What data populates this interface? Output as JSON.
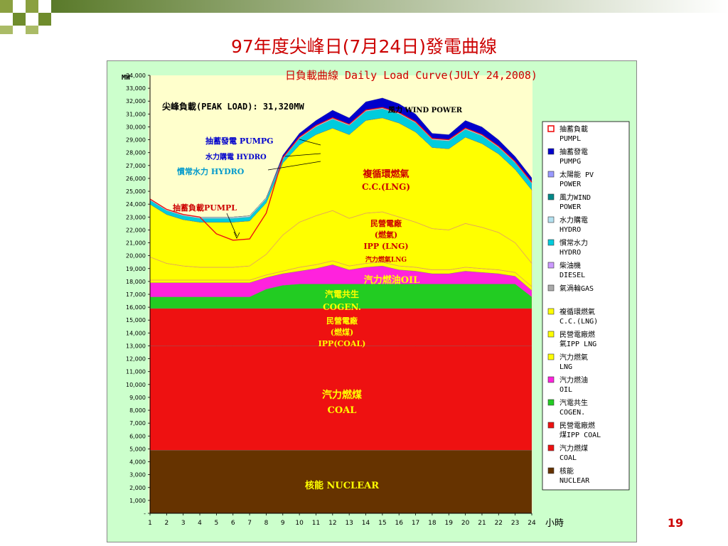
{
  "slide": {
    "title": "97年度尖峰日(7月24日)發電曲線",
    "page_number": "19",
    "colors": {
      "title": "#cc0000",
      "frame_bg": "#ccffcc",
      "plot_bg": "#ffffcc"
    }
  },
  "chart_data": {
    "type": "area",
    "title": "日負載曲線 Daily Load Curve(JULY 24,2008)",
    "ylabel": "MW",
    "xlabel": "小時",
    "peak_note": "尖峰負載(PEAK LOAD): 31,320MW",
    "ylim": [
      0,
      34000
    ],
    "x": [
      1,
      2,
      3,
      4,
      5,
      6,
      7,
      8,
      9,
      10,
      11,
      12,
      13,
      14,
      15,
      16,
      17,
      18,
      19,
      20,
      21,
      22,
      23,
      24
    ],
    "y_ticks": [
      "-",
      "1,000",
      "2,000",
      "3,000",
      "4,000",
      "5,000",
      "6,000",
      "7,000",
      "8,000",
      "9,000",
      "10,000",
      "11,000",
      "12,000",
      "13,000",
      "14,000",
      "15,000",
      "16,000",
      "17,000",
      "18,000",
      "19,000",
      "20,000",
      "21,000",
      "22,000",
      "23,000",
      "24,000",
      "25,000",
      "26,000",
      "27,000",
      "28,000",
      "29,000",
      "30,000",
      "31,000",
      "32,000",
      "33,000",
      "34,000"
    ],
    "x_ticks": [
      "1",
      "2",
      "3",
      "4",
      "5",
      "6",
      "7",
      "8",
      "9",
      "10",
      "11",
      "12",
      "13",
      "14",
      "15",
      "16",
      "17",
      "18",
      "19",
      "20",
      "21",
      "22",
      "23",
      "24"
    ],
    "stack_order": [
      "nuclear",
      "coal",
      "ipp_coal",
      "cogen",
      "oil",
      "lng",
      "ipp_lng",
      "cc_lng",
      "gas_turbine",
      "diesel",
      "hydro",
      "hydro_purchase",
      "wind",
      "solar",
      "pumpg"
    ],
    "series": {
      "nuclear": {
        "color": "#663300",
        "values": [
          4900,
          4900,
          4900,
          4900,
          4900,
          4900,
          4900,
          4900,
          4900,
          4900,
          4900,
          4900,
          4900,
          4900,
          4900,
          4900,
          4900,
          4900,
          4900,
          4900,
          4900,
          4900,
          4900,
          4900
        ]
      },
      "coal": {
        "color": "#ee1111",
        "values": [
          8100,
          8100,
          8100,
          8100,
          8100,
          8100,
          8100,
          8100,
          8100,
          8100,
          8100,
          8100,
          8100,
          8100,
          8100,
          8100,
          8100,
          8100,
          8100,
          8100,
          8100,
          8100,
          8100,
          8100
        ]
      },
      "ipp_coal": {
        "color": "#ee1111",
        "values": [
          2900,
          2900,
          2900,
          2900,
          2900,
          2900,
          2900,
          2900,
          2900,
          2900,
          2900,
          2900,
          2900,
          2900,
          2900,
          2900,
          2900,
          2900,
          2900,
          2900,
          2900,
          2900,
          2900,
          2900
        ]
      },
      "cogen": {
        "color": "#22cc22",
        "values": [
          900,
          900,
          900,
          900,
          900,
          900,
          900,
          1500,
          1800,
          1900,
          1900,
          1900,
          1900,
          1900,
          1900,
          1900,
          1900,
          1900,
          1900,
          1900,
          1900,
          1900,
          1900,
          900
        ]
      },
      "oil": {
        "color": "#ff22dd",
        "values": [
          1100,
          1100,
          1100,
          1100,
          1100,
          1100,
          1100,
          900,
          900,
          1000,
          1200,
          1500,
          1100,
          1300,
          1400,
          1100,
          1000,
          800,
          800,
          1000,
          900,
          800,
          600,
          500
        ]
      },
      "lng": {
        "color": "#ffff00",
        "values": [
          200,
          200,
          200,
          200,
          200,
          200,
          200,
          200,
          200,
          300,
          300,
          300,
          300,
          300,
          300,
          300,
          300,
          300,
          300,
          300,
          300,
          300,
          300,
          300
        ]
      },
      "ipp_lng": {
        "color": "#ffff00",
        "values": [
          1800,
          1300,
          1100,
          1000,
          1000,
          1000,
          1100,
          1600,
          2800,
          3500,
          3800,
          3900,
          3700,
          3900,
          3900,
          3800,
          3500,
          3200,
          3100,
          3400,
          3200,
          2900,
          2300,
          1800
        ]
      },
      "cc_lng": {
        "color": "#ffff00",
        "values": [
          4100,
          3800,
          3600,
          3500,
          3500,
          3500,
          3500,
          4000,
          5600,
          6000,
          6300,
          6400,
          6500,
          7200,
          7300,
          7300,
          7000,
          6300,
          6300,
          6700,
          6500,
          6100,
          5700,
          5700
        ]
      },
      "gas_turbine": {
        "color": "#aaaaaa",
        "values": [
          0,
          0,
          0,
          0,
          0,
          0,
          0,
          0,
          0,
          0,
          0,
          0,
          0,
          0,
          0,
          0,
          0,
          0,
          0,
          0,
          0,
          0,
          0,
          0
        ]
      },
      "diesel": {
        "color": "#cc99ff",
        "values": [
          0,
          0,
          0,
          0,
          0,
          0,
          0,
          0,
          0,
          0,
          0,
          0,
          0,
          0,
          0,
          0,
          0,
          0,
          0,
          0,
          0,
          0,
          0,
          0
        ]
      },
      "hydro": {
        "color": "#00ccdd",
        "values": [
          300,
          300,
          300,
          300,
          300,
          300,
          300,
          300,
          300,
          500,
          600,
          700,
          700,
          700,
          700,
          700,
          700,
          600,
          600,
          600,
          600,
          500,
          500,
          500
        ]
      },
      "hydro_purchase": {
        "color": "#b4e1f0",
        "values": [
          100,
          100,
          100,
          100,
          100,
          100,
          100,
          100,
          100,
          100,
          100,
          100,
          100,
          100,
          100,
          100,
          100,
          100,
          100,
          100,
          100,
          100,
          100,
          100
        ]
      },
      "wind": {
        "color": "#008888",
        "values": [
          0,
          0,
          0,
          0,
          0,
          0,
          0,
          0,
          0,
          0,
          0,
          0,
          0,
          0,
          0,
          0,
          0,
          0,
          0,
          0,
          0,
          0,
          0,
          0
        ]
      },
      "solar": {
        "color": "#9999ff",
        "values": [
          0,
          0,
          0,
          0,
          0,
          0,
          0,
          0,
          0,
          0,
          0,
          0,
          0,
          0,
          0,
          0,
          0,
          0,
          0,
          0,
          0,
          0,
          0,
          0
        ]
      },
      "pumpg": {
        "color": "#0000cc",
        "values": [
          0,
          0,
          0,
          0,
          0,
          0,
          0,
          0,
          200,
          300,
          400,
          600,
          500,
          650,
          750,
          700,
          600,
          400,
          400,
          600,
          600,
          500,
          400,
          350
        ]
      },
      "pumpl": {
        "color": "#ee1111",
        "values": [
          0,
          0,
          0,
          0,
          1300,
          1800,
          1800,
          1200,
          0,
          0,
          0,
          0,
          0,
          0,
          0,
          0,
          0,
          0,
          0,
          0,
          0,
          0,
          0,
          0
        ]
      }
    },
    "in_chart_labels": [
      {
        "key": "pumpg",
        "text": "抽蓄發電 PUMPG",
        "color": "#0000cc"
      },
      {
        "key": "hydro_purchase",
        "text": "水力購電 HYDRO",
        "color": "#0000cc"
      },
      {
        "key": "hydro",
        "text": "慣常水力 HYDRO",
        "color": "#0099cc"
      },
      {
        "key": "wind",
        "text": "風力 WIND POWER",
        "color": "#000000"
      },
      {
        "key": "pumpl",
        "text": "抽蓄負載PUMPL",
        "color": "#cc0000"
      },
      {
        "key": "cc_lng_1",
        "text": "複循環燃氣",
        "color": "#cc0000"
      },
      {
        "key": "cc_lng_2",
        "text": "C.C.(LNG)",
        "color": "#cc0000"
      },
      {
        "key": "ipp_lng_1",
        "text": "民營電廠",
        "color": "#cc0000"
      },
      {
        "key": "ipp_lng_2",
        "text": "(燃氣)",
        "color": "#cc0000"
      },
      {
        "key": "ipp_lng_3",
        "text": "IPP (LNG)",
        "color": "#cc0000"
      },
      {
        "key": "lng",
        "text": "汽力燃氣LNG",
        "color": "#cc0000"
      },
      {
        "key": "oil",
        "text": "汽力燃油OIL",
        "color": "#ffff00"
      },
      {
        "key": "cogen_1",
        "text": "汽電共生",
        "color": "#ffff00"
      },
      {
        "key": "cogen_2",
        "text": "COGEN.",
        "color": "#ffff00"
      },
      {
        "key": "ipp_coal_1",
        "text": "民營電廠",
        "color": "#ffff00"
      },
      {
        "key": "ipp_coal_2",
        "text": "(燃煤)",
        "color": "#ffff00"
      },
      {
        "key": "ipp_coal_3",
        "text": "IPP(COAL)",
        "color": "#ffff00"
      },
      {
        "key": "coal_1",
        "text": "汽力燃煤",
        "color": "#ffff00"
      },
      {
        "key": "coal_2",
        "text": "COAL",
        "color": "#ffff00"
      },
      {
        "key": "nuclear",
        "text": "核能 NUCLEAR",
        "color": "#ffff00"
      }
    ],
    "legend": {
      "placement": "right",
      "entries": [
        {
          "key": "pumpl",
          "lines": [
            "抽蓄負載",
            "PUMPL"
          ],
          "swatch": "outline",
          "color": "#ee1111"
        },
        {
          "key": "pumpg",
          "lines": [
            "抽蓄發電",
            "PUMPG"
          ],
          "color": "#0000cc"
        },
        {
          "key": "solar",
          "lines": [
            "太陽能 PV",
            "POWER"
          ],
          "color": "#9999ff"
        },
        {
          "key": "wind",
          "lines": [
            "風力WIND",
            "POWER"
          ],
          "color": "#008888"
        },
        {
          "key": "hydro_purchase",
          "lines": [
            "水力購電",
            "HYDRO"
          ],
          "color": "#b4e1f0"
        },
        {
          "key": "hydro",
          "lines": [
            "慣常水力",
            "HYDRO"
          ],
          "color": "#00ccdd"
        },
        {
          "key": "diesel",
          "lines": [
            "柴油機",
            "DIESEL"
          ],
          "color": "#cc99ff"
        },
        {
          "key": "gas_turbine",
          "lines": [
            "氣渦輪GAS"
          ],
          "color": "#aaaaaa"
        },
        {
          "key": "cc_lng",
          "lines": [
            "複循環燃氣",
            "C.C.(LNG)"
          ],
          "color": "#ffff00",
          "gap": true
        },
        {
          "key": "ipp_lng",
          "lines": [
            "民營電廠燃",
            "氣IPP LNG"
          ],
          "color": "#ffff00"
        },
        {
          "key": "lng",
          "lines": [
            "汽力燃氣",
            "LNG"
          ],
          "color": "#ffff00"
        },
        {
          "key": "oil",
          "lines": [
            "汽力燃油",
            "OIL"
          ],
          "color": "#ff22dd"
        },
        {
          "key": "cogen",
          "lines": [
            "汽電共生",
            "COGEN."
          ],
          "color": "#22cc22"
        },
        {
          "key": "ipp_coal",
          "lines": [
            "民營電廠燃",
            "煤IPP COAL"
          ],
          "color": "#ee1111"
        },
        {
          "key": "coal",
          "lines": [
            "汽力燃煤",
            "COAL"
          ],
          "color": "#ee1111"
        },
        {
          "key": "nuclear",
          "lines": [
            "核能",
            "NUCLEAR"
          ],
          "color": "#663300"
        }
      ]
    }
  }
}
